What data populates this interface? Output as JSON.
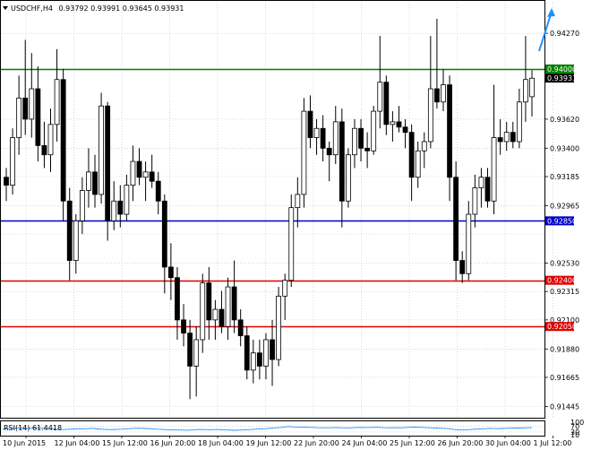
{
  "header": {
    "symbol": "USDCHF,H4",
    "ohlc": "0.93792 0.93991 0.93645 0.93931"
  },
  "rsi_header": "RSI(14) 61.4418",
  "colors": {
    "bull": "#ffffff",
    "bear": "#000000",
    "grid": "#b8c4d0",
    "rsi_line": "#1e90ff",
    "level_green": "#008000",
    "level_blue": "#0000cd",
    "level_red": "#e00000",
    "arrow": "#1e90ff",
    "current_price_bg": "#000000"
  },
  "chart_data": [
    {
      "type": "candlestick",
      "symbol": "USDCHF",
      "timeframe": "H4",
      "ylim": [
        0.914,
        0.944
      ],
      "y_ticks": [
        "0.94270",
        "0.94000",
        "0.93931",
        "0.93620",
        "0.93400",
        "0.93185",
        "0.92965",
        "0.92850",
        "0.92530",
        "0.92400",
        "0.92315",
        "0.92100",
        "0.92050",
        "0.91880",
        "0.91665",
        "0.91445"
      ],
      "x_ticks": [
        "10 Jun 2015",
        "12 Jun 04:00",
        "15 Jun 12:00",
        "16 Jun 20:00",
        "18 Jun 04:00",
        "19 Jun 12:00",
        "22 Jun 20:00",
        "24 Jun 04:00",
        "25 Jun 12:00",
        "26 Jun 20:00",
        "30 Jun 04:00",
        "1 Jul 12:00"
      ],
      "levels": [
        {
          "value": 0.94,
          "label": "0.94000",
          "color": "#008000"
        },
        {
          "value": 0.9285,
          "label": "0.92850",
          "color": "#0000cd"
        },
        {
          "value": 0.924,
          "label": "0.92400",
          "color": "#e00000"
        },
        {
          "value": 0.9205,
          "label": "0.92050",
          "color": "#e00000"
        }
      ],
      "current_price": 0.93931,
      "candles": [
        [
          0.9318,
          0.9325,
          0.93,
          0.9312
        ],
        [
          0.9312,
          0.9355,
          0.9305,
          0.9348
        ],
        [
          0.9348,
          0.9395,
          0.9335,
          0.9378
        ],
        [
          0.9378,
          0.9422,
          0.935,
          0.9362
        ],
        [
          0.9362,
          0.9412,
          0.9348,
          0.9385
        ],
        [
          0.9385,
          0.9402,
          0.933,
          0.9342
        ],
        [
          0.9342,
          0.936,
          0.9325,
          0.9335
        ],
        [
          0.9335,
          0.937,
          0.9322,
          0.9358
        ],
        [
          0.9358,
          0.9415,
          0.9345,
          0.9392
        ],
        [
          0.9392,
          0.94,
          0.9285,
          0.93
        ],
        [
          0.93,
          0.931,
          0.924,
          0.9255
        ],
        [
          0.9255,
          0.929,
          0.9245,
          0.9285
        ],
        [
          0.9285,
          0.9318,
          0.9275,
          0.9308
        ],
        [
          0.9308,
          0.934,
          0.9295,
          0.9322
        ],
        [
          0.9322,
          0.9335,
          0.9295,
          0.9305
        ],
        [
          0.9305,
          0.9382,
          0.9298,
          0.9372
        ],
        [
          0.9372,
          0.9375,
          0.927,
          0.9285
        ],
        [
          0.9285,
          0.9315,
          0.9278,
          0.93
        ],
        [
          0.93,
          0.9312,
          0.928,
          0.929
        ],
        [
          0.929,
          0.932,
          0.9285,
          0.9312
        ],
        [
          0.9312,
          0.9342,
          0.93,
          0.933
        ],
        [
          0.933,
          0.934,
          0.9312,
          0.9318
        ],
        [
          0.9318,
          0.933,
          0.93,
          0.9322
        ],
        [
          0.9322,
          0.9335,
          0.931,
          0.9315
        ],
        [
          0.9315,
          0.9322,
          0.929,
          0.93
        ],
        [
          0.93,
          0.9305,
          0.923,
          0.925
        ],
        [
          0.925,
          0.9268,
          0.9225,
          0.9242
        ],
        [
          0.9242,
          0.925,
          0.9195,
          0.921
        ],
        [
          0.921,
          0.9222,
          0.919,
          0.92
        ],
        [
          0.92,
          0.921,
          0.915,
          0.9175
        ],
        [
          0.9175,
          0.9205,
          0.9152,
          0.9195
        ],
        [
          0.9195,
          0.9245,
          0.9185,
          0.9238
        ],
        [
          0.9238,
          0.925,
          0.9195,
          0.921
        ],
        [
          0.921,
          0.9225,
          0.9195,
          0.9218
        ],
        [
          0.9218,
          0.9232,
          0.92,
          0.9205
        ],
        [
          0.9205,
          0.9242,
          0.9195,
          0.9235
        ],
        [
          0.9235,
          0.9255,
          0.92,
          0.921
        ],
        [
          0.921,
          0.9218,
          0.919,
          0.9198
        ],
        [
          0.9198,
          0.9205,
          0.9165,
          0.9172
        ],
        [
          0.9172,
          0.9195,
          0.9162,
          0.9185
        ],
        [
          0.9185,
          0.9195,
          0.9165,
          0.9175
        ],
        [
          0.9175,
          0.92,
          0.9165,
          0.9195
        ],
        [
          0.9195,
          0.921,
          0.916,
          0.918
        ],
        [
          0.918,
          0.9235,
          0.9175,
          0.9228
        ],
        [
          0.9228,
          0.9245,
          0.921,
          0.924
        ],
        [
          0.924,
          0.9305,
          0.9235,
          0.9295
        ],
        [
          0.9295,
          0.9318,
          0.928,
          0.9305
        ],
        [
          0.9305,
          0.9378,
          0.9295,
          0.9368
        ],
        [
          0.9368,
          0.938,
          0.934,
          0.9348
        ],
        [
          0.9348,
          0.9362,
          0.9335,
          0.9355
        ],
        [
          0.9355,
          0.9365,
          0.933,
          0.934
        ],
        [
          0.934,
          0.9345,
          0.9315,
          0.9335
        ],
        [
          0.9335,
          0.9372,
          0.9328,
          0.936
        ],
        [
          0.936,
          0.937,
          0.928,
          0.93
        ],
        [
          0.93,
          0.934,
          0.9295,
          0.9335
        ],
        [
          0.9335,
          0.9362,
          0.9325,
          0.9355
        ],
        [
          0.9355,
          0.9362,
          0.933,
          0.934
        ],
        [
          0.934,
          0.9352,
          0.9325,
          0.9338
        ],
        [
          0.9338,
          0.9372,
          0.9335,
          0.9368
        ],
        [
          0.9368,
          0.9425,
          0.9355,
          0.939
        ],
        [
          0.939,
          0.9395,
          0.935,
          0.9358
        ],
        [
          0.9358,
          0.9368,
          0.9345,
          0.936
        ],
        [
          0.936,
          0.9372,
          0.9352,
          0.9356
        ],
        [
          0.9356,
          0.9362,
          0.934,
          0.9352
        ],
        [
          0.9352,
          0.9358,
          0.93,
          0.9318
        ],
        [
          0.9318,
          0.9345,
          0.931,
          0.9338
        ],
        [
          0.9338,
          0.9352,
          0.9325,
          0.9345
        ],
        [
          0.9345,
          0.9425,
          0.934,
          0.9385
        ],
        [
          0.9385,
          0.9438,
          0.937,
          0.9375
        ],
        [
          0.9375,
          0.94,
          0.9368,
          0.9388
        ],
        [
          0.9388,
          0.9395,
          0.93,
          0.9318
        ],
        [
          0.9318,
          0.933,
          0.924,
          0.9255
        ],
        [
          0.9255,
          0.9262,
          0.9238,
          0.9245
        ],
        [
          0.9245,
          0.93,
          0.924,
          0.929
        ],
        [
          0.929,
          0.932,
          0.928,
          0.931
        ],
        [
          0.931,
          0.9325,
          0.9295,
          0.9318
        ],
        [
          0.9318,
          0.9325,
          0.9295,
          0.93
        ],
        [
          0.93,
          0.9388,
          0.929,
          0.9348
        ],
        [
          0.9348,
          0.9362,
          0.9335,
          0.9345
        ],
        [
          0.9345,
          0.936,
          0.9338,
          0.9352
        ],
        [
          0.9352,
          0.936,
          0.934,
          0.9345
        ],
        [
          0.9345,
          0.9385,
          0.934,
          0.9375
        ],
        [
          0.9375,
          0.9425,
          0.936,
          0.9392
        ],
        [
          0.9379,
          0.9399,
          0.9364,
          0.9393
        ]
      ]
    },
    {
      "type": "line",
      "name": "RSI(14)",
      "ylim": [
        10,
        100
      ],
      "y_ticks": [
        100,
        70,
        30,
        10
      ],
      "values": [
        52,
        54,
        56,
        58,
        55,
        57,
        59,
        56,
        53,
        50,
        47,
        49,
        52,
        54,
        53,
        56,
        52,
        49,
        47,
        48,
        50,
        53,
        56,
        57,
        55,
        53,
        50,
        48,
        46,
        45,
        44,
        43,
        45,
        48,
        47,
        46,
        48,
        46,
        44,
        42,
        44,
        46,
        48,
        51,
        53,
        57,
        60,
        63,
        69,
        66,
        65,
        64,
        63,
        61,
        60,
        60,
        62,
        60,
        59,
        61,
        63,
        62,
        63,
        64,
        61,
        60,
        61,
        60,
        63,
        65,
        64,
        62,
        60,
        58,
        56,
        54,
        47,
        44,
        46,
        49,
        51,
        53,
        56,
        54,
        55,
        57,
        59,
        58,
        60,
        61
      ]
    }
  ]
}
